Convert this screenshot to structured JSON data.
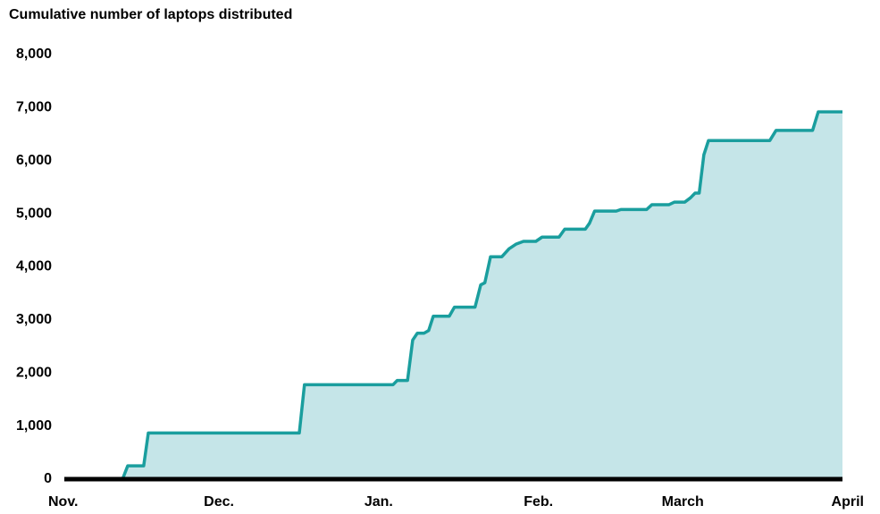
{
  "chart_data": {
    "type": "area",
    "title": "Cumulative number of laptops distributed",
    "x": [
      0,
      11.3,
      12.3,
      15.4,
      16.3,
      45.6,
      46.6,
      63.8,
      64.6,
      66.6,
      67.6,
      68.5,
      69.8,
      70.7,
      71.6,
      74.7,
      75.7,
      79.7,
      80.8,
      81.6,
      82.7,
      84.9,
      86.3,
      87.7,
      89.1,
      91.5,
      92.7,
      96.0,
      97.1,
      101.1,
      101.9,
      102.9,
      107.1,
      108.0,
      113.0,
      114.0,
      117.3,
      118.4,
      120.4,
      121.5,
      122.4,
      123.2,
      124.1,
      125.0,
      136.9,
      138.1,
      145.2,
      146.3,
      151
    ],
    "values": [
      0,
      0,
      250,
      250,
      870,
      870,
      1780,
      1780,
      1860,
      1860,
      2620,
      2750,
      2750,
      2800,
      3070,
      3070,
      3240,
      3240,
      3660,
      3700,
      4190,
      4190,
      4340,
      4430,
      4480,
      4480,
      4560,
      4560,
      4710,
      4710,
      4820,
      5050,
      5050,
      5080,
      5080,
      5170,
      5170,
      5220,
      5220,
      5300,
      5390,
      5390,
      6110,
      6380,
      6380,
      6570,
      6570,
      6920,
      6920
    ],
    "color": "#1a9e9e",
    "fill_color": "#c5e5e8",
    "xlim": [
      0,
      151
    ],
    "xticks": [
      {
        "value": 0,
        "label": "Nov."
      },
      {
        "value": 30,
        "label": "Dec."
      },
      {
        "value": 61,
        "label": "Jan."
      },
      {
        "value": 92,
        "label": "Feb."
      },
      {
        "value": 120,
        "label": "March"
      },
      {
        "value": 151,
        "label": "April"
      }
    ],
    "ylim": [
      0,
      8000
    ],
    "yticks": [
      0,
      {
        "value": 1000,
        "label": "1,000"
      },
      {
        "value": 2000,
        "label": "2,000"
      },
      {
        "value": 3000,
        "label": "3,000"
      },
      {
        "value": 4000,
        "label": "4,000"
      },
      {
        "value": 5000,
        "label": "5,000"
      },
      {
        "value": 6000,
        "label": "6,000"
      },
      {
        "value": 7000,
        "label": "7,000"
      },
      {
        "value": 8000,
        "label": "8,000"
      }
    ]
  }
}
